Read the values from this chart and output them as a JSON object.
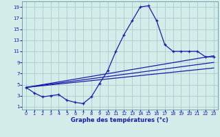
{
  "xlabel": "Graphe des températures (°c)",
  "background_color": "#d4ecea",
  "grid_color": "#a8cccc",
  "line_color": "#1a1aaa",
  "xlim": [
    -0.5,
    23.5
  ],
  "ylim": [
    0.5,
    20.0
  ],
  "xticks": [
    0,
    1,
    2,
    3,
    4,
    5,
    6,
    7,
    8,
    9,
    10,
    11,
    12,
    13,
    14,
    15,
    16,
    17,
    18,
    19,
    20,
    21,
    22,
    23
  ],
  "yticks": [
    1,
    3,
    5,
    7,
    9,
    11,
    13,
    15,
    17,
    19
  ],
  "curve1_x": [
    0,
    1,
    2,
    3,
    4,
    5,
    6,
    7,
    8,
    9,
    10,
    11,
    12,
    13,
    14,
    15,
    16,
    17,
    18,
    19,
    20,
    21,
    22,
    23
  ],
  "curve1_y": [
    4.5,
    3.5,
    2.8,
    3.0,
    3.2,
    2.2,
    1.8,
    1.6,
    2.8,
    5.2,
    7.5,
    11.0,
    14.0,
    16.5,
    19.0,
    19.2,
    16.5,
    12.2,
    11.0,
    11.0,
    11.0,
    11.0,
    10.0,
    10.0
  ],
  "curve2_x": [
    0,
    23
  ],
  "curve2_y": [
    4.5,
    10.2
  ],
  "curve3_x": [
    0,
    23
  ],
  "curve3_y": [
    4.5,
    9.0
  ],
  "curve4_x": [
    0,
    23
  ],
  "curve4_y": [
    4.5,
    8.0
  ]
}
